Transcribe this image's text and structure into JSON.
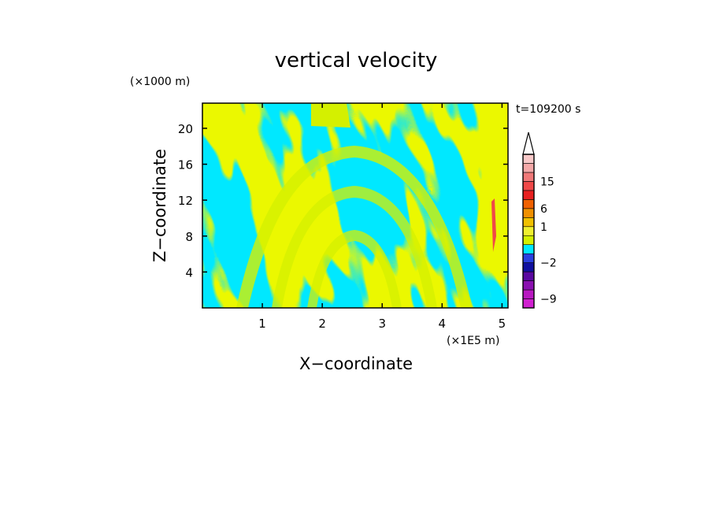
{
  "chart_data": {
    "type": "heatmap",
    "title": "vertical velocity",
    "xlabel": "X−coordinate",
    "ylabel": "Z−coordinate",
    "x_unit": "(×1E5 m)",
    "y_unit": "(×1000 m)",
    "time_label": "t=109200 s",
    "xlim": [
      0,
      5.1
    ],
    "ylim": [
      0,
      22.8
    ],
    "x_ticks": [
      1,
      2,
      3,
      4,
      5
    ],
    "y_ticks": [
      4,
      8,
      12,
      16,
      20
    ],
    "grid": false,
    "colorbar": {
      "levels": [
        -9,
        -2,
        1,
        6,
        15
      ],
      "level_labels": [
        "−9",
        "−2",
        "1",
        "6",
        "15"
      ],
      "colors": [
        "#d020d0",
        "#b818c0",
        "#8a10b0",
        "#5a08a0",
        "#1010a0",
        "#2a40e0",
        "#00e8ff",
        "#d4f000",
        "#f0f030",
        "#f0c000",
        "#f09000",
        "#f06000",
        "#e82020",
        "#f04848",
        "#f07878",
        "#f4a8a8",
        "#f8c8c8"
      ],
      "extend": "max"
    },
    "field_colors": {
      "positive": "#d4f000",
      "negative": "#00e8ff",
      "strong_positive": "#f04848"
    }
  }
}
